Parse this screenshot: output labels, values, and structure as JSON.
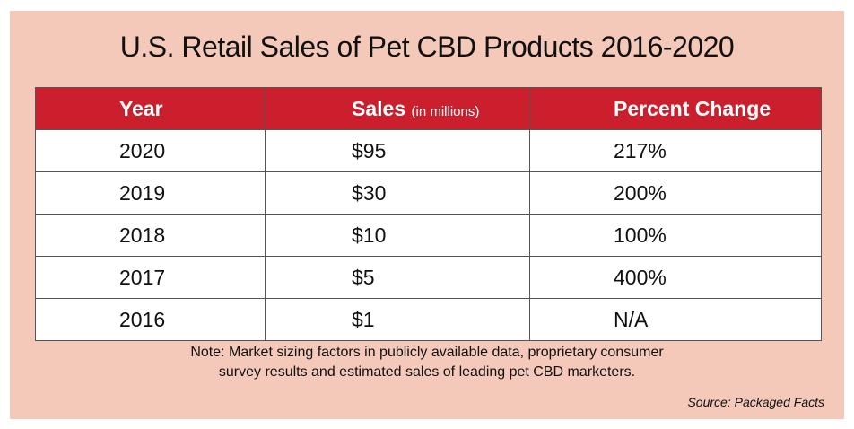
{
  "chart_data": {
    "type": "table",
    "title": "U.S. Retail Sales of Pet CBD Products 2016-2020",
    "columns": {
      "year": "Year",
      "sales": "Sales",
      "sales_unit": "(in millions)",
      "change": "Percent Change"
    },
    "rows": [
      {
        "year": "2020",
        "sales": "$95",
        "change": "217%"
      },
      {
        "year": "2019",
        "sales": "$30",
        "change": "200%"
      },
      {
        "year": "2018",
        "sales": "$10",
        "change": "100%"
      },
      {
        "year": "2017",
        "sales": "$5",
        "change": "400%"
      },
      {
        "year": "2016",
        "sales": "$1",
        "change": "N/A"
      }
    ],
    "note_line1": "Note: Market sizing factors in publicly available data, proprietary consumer",
    "note_line2": "survey results and estimated sales of leading pet CBD marketers.",
    "source": "Source: Packaged Facts"
  },
  "colors": {
    "background": "#f4c9ba",
    "header": "#cc1f2d",
    "header_text": "#ffffff",
    "cell": "#ffffff"
  }
}
